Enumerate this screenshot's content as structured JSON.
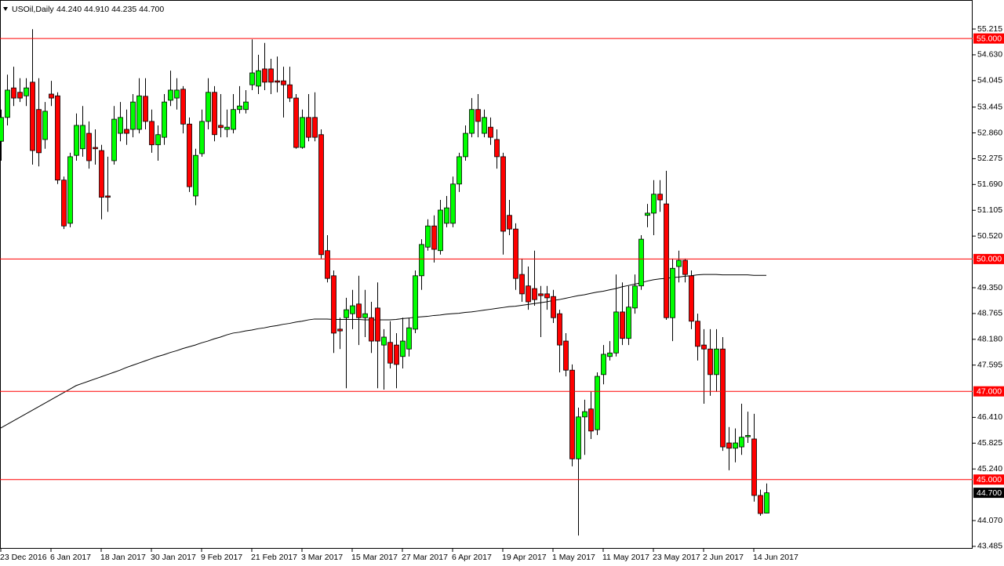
{
  "chart_data": {
    "type": "candlestick",
    "title": "USOil,Daily",
    "subtitle": "44.240 44.910 44.235 44.700",
    "up_color": "#00ff00",
    "down_color": "#ff0000",
    "categories": [
      "23 Dec 2016",
      null,
      null,
      null,
      null,
      null,
      null,
      null,
      "6 Jan 2017",
      null,
      null,
      null,
      null,
      null,
      null,
      null,
      "18 Jan 2017",
      null,
      null,
      null,
      null,
      null,
      null,
      null,
      "30 Jan 2017",
      null,
      null,
      null,
      null,
      null,
      null,
      null,
      "9 Feb 2017",
      null,
      null,
      null,
      null,
      null,
      null,
      null,
      "21 Feb 2017",
      null,
      null,
      null,
      null,
      null,
      null,
      null,
      "3 Mar 2017",
      null,
      null,
      null,
      null,
      null,
      null,
      null,
      "15 Mar 2017",
      null,
      null,
      null,
      null,
      null,
      null,
      null,
      "27 Mar 2017",
      null,
      null,
      null,
      null,
      null,
      null,
      null,
      "6 Apr 2017",
      null,
      null,
      null,
      null,
      null,
      null,
      null,
      "19 Apr 2017",
      null,
      null,
      null,
      null,
      null,
      null,
      null,
      "1 May 2017",
      null,
      null,
      null,
      null,
      null,
      null,
      null,
      "11 May 2017",
      null,
      null,
      null,
      null,
      null,
      null,
      null,
      "23 May 2017",
      null,
      null,
      null,
      null,
      null,
      null,
      null,
      "2 Jun 2017",
      null,
      null,
      null,
      null,
      null,
      null,
      null,
      "14 Jun 2017",
      null,
      null
    ],
    "open": [
      52.67,
      53.21,
      53.88,
      53.78,
      53.7,
      54.01,
      53.39,
      52.71,
      53.74,
      53.7,
      51.79,
      50.81,
      52.35,
      52.5,
      52.85,
      52.53,
      52.46,
      51.43,
      52.23,
      52.85,
      52.94,
      52.94,
      52.94,
      53.69,
      53.12,
      52.59,
      52.76,
      53.6,
      53.65,
      53.85,
      53.06,
      51.43,
      52.39,
      53.12,
      53.78,
      53.03,
      52.94,
      52.94,
      53.39,
      53.39,
      53.95,
      53.92,
      54.31,
      54.31,
      54.04,
      54.04,
      53.95,
      53.65,
      52.53,
      53.21,
      53.21,
      52.82,
      50.19,
      49.62,
      48.41,
      48.67,
      48.76,
      48.98,
      48.67,
      48.67,
      48.89,
      48.05,
      48.11,
      48.05,
      47.79,
      47.96,
      48.41,
      49.62,
      50.27,
      50.75,
      50.19,
      50.81,
      50.81,
      51.7,
      52.32,
      52.85,
      53.39,
      52.85,
      52.99,
      52.71,
      52.32,
      50.99,
      50.68,
      49.65,
      49.39,
      49.33,
      49.21,
      49.21,
      49.15,
      48.76,
      48.14,
      47.48,
      45.47,
      46.42,
      46.6,
      46.13,
      47.38,
      47.79,
      47.87,
      48.8,
      48.2,
      48.89,
      49.39,
      50.99,
      51.04,
      51.47,
      51.25,
      48.67,
      49.83,
      49.97,
      49.62,
      48.59,
      48.05,
      47.96,
      47.38,
      47.96,
      45.83,
      45.71,
      45.74,
      45.97,
      45.92,
      44.64,
      44.24
    ],
    "high": [
      53.39,
      54.18,
      54.36,
      54.1,
      54.1,
      55.21,
      54.1,
      53.56,
      54.04,
      53.78,
      51.87,
      52.41,
      53.3,
      53.47,
      53.12,
      52.94,
      52.59,
      52.32,
      53.47,
      53.56,
      53.39,
      53.74,
      54.1,
      54.1,
      53.39,
      53.03,
      53.74,
      54.27,
      54.1,
      53.92,
      53.21,
      52.5,
      53.39,
      54.1,
      53.92,
      53.74,
      53.39,
      53.74,
      53.92,
      53.83,
      54.98,
      54.63,
      54.9,
      54.54,
      54.59,
      54.36,
      54.36,
      53.74,
      53.39,
      53.74,
      53.78,
      52.94,
      50.54,
      49.74,
      48.67,
      49.12,
      49.3,
      49.62,
      49.3,
      49.03,
      49.47,
      48.41,
      48.59,
      48.32,
      48.67,
      48.67,
      49.74,
      50.45,
      50.9,
      50.99,
      51.34,
      51.43,
      51.87,
      52.41,
      53.03,
      53.65,
      53.74,
      53.39,
      53.21,
      52.94,
      52.41,
      51.34,
      50.81,
      50.01,
      49.83,
      50.19,
      49.39,
      49.39,
      49.3,
      48.85,
      48.32,
      47.61,
      46.63,
      46.81,
      46.99,
      47.43,
      48.05,
      48.14,
      49.65,
      49.47,
      49.39,
      49.65,
      50.54,
      51.25,
      51.79,
      51.79,
      52.0,
      50.01,
      50.19,
      50.01,
      49.74,
      48.76,
      48.41,
      48.41,
      48.41,
      48.23,
      46.19,
      46.16,
      46.72,
      46.54,
      46.49,
      44.77,
      44.91
    ],
    "low": [
      52.23,
      53.03,
      53.47,
      53.56,
      53.47,
      52.14,
      52.1,
      52.5,
      53.47,
      51.7,
      50.68,
      50.72,
      52.23,
      52.32,
      52.05,
      52.14,
      50.9,
      51.07,
      52.14,
      52.67,
      52.59,
      52.76,
      52.85,
      52.94,
      52.41,
      52.23,
      52.59,
      53.47,
      53.39,
      52.85,
      51.52,
      51.22,
      52.32,
      52.94,
      52.67,
      52.76,
      52.76,
      52.85,
      53.3,
      53.3,
      53.83,
      53.74,
      53.83,
      53.74,
      53.78,
      53.21,
      53.56,
      52.5,
      52.5,
      52.67,
      52.67,
      50.01,
      49.47,
      47.87,
      47.96,
      47.07,
      48.41,
      48.05,
      48.23,
      47.87,
      47.07,
      47.04,
      47.52,
      47.07,
      47.52,
      47.79,
      48.32,
      49.3,
      50.19,
      49.92,
      50.1,
      50.72,
      50.72,
      51.52,
      52.23,
      52.76,
      52.76,
      52.76,
      52.59,
      52.05,
      50.1,
      50.54,
      49.3,
      49.03,
      48.85,
      48.94,
      48.23,
      48.85,
      48.55,
      47.43,
      47.34,
      45.3,
      43.73,
      45.56,
      45.92,
      46.01,
      47.16,
      47.7,
      47.79,
      48.05,
      48.05,
      48.76,
      49.3,
      50.72,
      50.54,
      51.07,
      48.62,
      48.14,
      49.47,
      49.47,
      48.41,
      47.7,
      46.72,
      46.9,
      46.99,
      45.65,
      45.21,
      45.39,
      45.56,
      45.83,
      44.5,
      44.18,
      44.235
    ],
    "close": [
      53.21,
      53.83,
      53.65,
      53.65,
      53.88,
      52.46,
      52.41,
      53.35,
      53.65,
      51.79,
      50.75,
      52.32,
      53.03,
      53.03,
      52.23,
      52.5,
      51.4,
      51.4,
      53.17,
      53.21,
      52.85,
      53.56,
      53.7,
      53.12,
      52.59,
      52.82,
      53.56,
      53.83,
      53.83,
      53.06,
      51.64,
      52.35,
      53.12,
      53.78,
      52.82,
      52.98,
      52.99,
      53.39,
      53.47,
      53.56,
      54.22,
      54.27,
      54.01,
      54.01,
      54.01,
      53.95,
      53.65,
      52.53,
      53.21,
      52.76,
      52.76,
      50.1,
      49.56,
      48.32,
      48.37,
      48.85,
      48.94,
      48.67,
      48.76,
      48.14,
      48.14,
      48.23,
      47.64,
      47.61,
      48.14,
      48.44,
      49.62,
      50.33,
      50.75,
      50.22,
      51.11,
      51.16,
      51.7,
      52.32,
      52.85,
      53.39,
      53.12,
      53.21,
      52.76,
      52.32,
      50.63,
      50.68,
      49.56,
      49.21,
      49.03,
      49.08,
      49.17,
      49.12,
      48.67,
      48.05,
      47.48,
      45.47,
      46.42,
      46.54,
      46.1,
      47.34,
      47.84,
      47.87,
      48.8,
      48.2,
      48.91,
      49.39,
      50.45,
      51.04,
      51.47,
      51.34,
      48.67,
      49.79,
      49.97,
      49.65,
      48.59,
      48.02,
      47.96,
      47.38,
      47.96,
      45.74,
      45.71,
      45.83,
      45.96,
      46.0,
      44.64,
      44.23,
      44.7
    ],
    "line_overlay": {
      "color": "#000000",
      "values": [
        46.17,
        46.25,
        46.33,
        46.41,
        46.49,
        46.57,
        46.65,
        46.73,
        46.81,
        46.89,
        46.97,
        47.05,
        47.13,
        47.18,
        47.23,
        47.28,
        47.33,
        47.38,
        47.43,
        47.48,
        47.54,
        47.59,
        47.64,
        47.69,
        47.74,
        47.79,
        47.83,
        47.88,
        47.92,
        47.97,
        48.01,
        48.05,
        48.1,
        48.14,
        48.19,
        48.23,
        48.28,
        48.32,
        48.34,
        48.37,
        48.39,
        48.42,
        48.44,
        48.47,
        48.49,
        48.52,
        48.54,
        48.57,
        48.59,
        48.62,
        48.64,
        48.64,
        48.64,
        48.63,
        48.63,
        48.63,
        48.63,
        48.63,
        48.62,
        48.62,
        48.62,
        48.62,
        48.62,
        48.63,
        48.65,
        48.66,
        48.68,
        48.69,
        48.7,
        48.72,
        48.73,
        48.75,
        48.76,
        48.77,
        48.79,
        48.8,
        48.82,
        48.84,
        48.86,
        48.88,
        48.9,
        48.92,
        48.93,
        48.95,
        48.97,
        48.99,
        49.01,
        49.03,
        49.06,
        49.08,
        49.11,
        49.14,
        49.17,
        49.19,
        49.22,
        49.25,
        49.27,
        49.3,
        49.33,
        49.37,
        49.4,
        49.43,
        49.46,
        49.5,
        49.53,
        49.55,
        49.56,
        49.58,
        49.59,
        49.61,
        49.62,
        49.64,
        49.65,
        49.65,
        49.65,
        49.64,
        49.64,
        49.64,
        49.64,
        49.64,
        49.63,
        49.63,
        49.63
      ]
    },
    "levels": {
      "color": "#ff0000",
      "items": [
        {
          "value": 55,
          "label": "55.000"
        },
        {
          "value": 50,
          "label": "50.000"
        },
        {
          "value": 47,
          "label": "47.000"
        },
        {
          "value": 45,
          "label": "45.000"
        }
      ]
    },
    "price_label": {
      "value": 44.7,
      "label": "44.700"
    },
    "ylim": [
      43.431,
      55.873
    ],
    "yticks": [
      55.215,
      {
        "value": 54.63,
        "label": "54.630"
      },
      54.045,
      53.445,
      {
        "value": 52.86,
        "label": "52.860"
      },
      52.275,
      {
        "value": 51.69,
        "label": "51.690"
      },
      51.105,
      {
        "value": 50.52,
        "label": "50.520"
      },
      {
        "value": 49.35,
        "label": "49.350"
      },
      48.765,
      {
        "value": 48.18,
        "label": "48.180"
      },
      47.595,
      {
        "value": 46.41,
        "label": "46.410"
      },
      45.825,
      {
        "value": 45.24,
        "label": "45.240"
      },
      {
        "value": 44.07,
        "label": "44.070"
      },
      43.485
    ],
    "grid": false
  }
}
